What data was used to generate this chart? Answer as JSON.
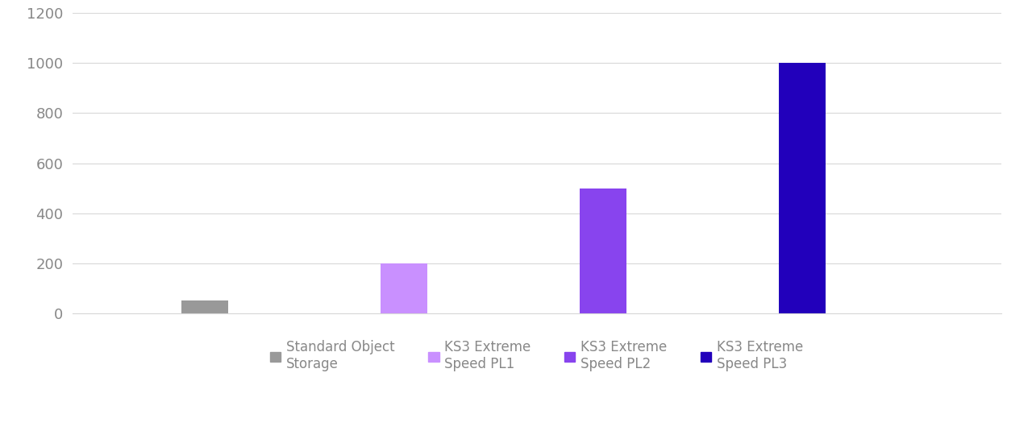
{
  "categories": [
    "Standard Object\nStorage",
    "KS3 Extreme\nSpeed PL1",
    "KS3 Extreme\nSpeed PL2",
    "KS3 Extreme\nSpeed PL3"
  ],
  "values": [
    50,
    200,
    500,
    1000
  ],
  "bar_colors": [
    "#999999",
    "#c990ff",
    "#8844ee",
    "#2200bb"
  ],
  "legend_colors": [
    "#999999",
    "#c990ff",
    "#8844ee",
    "#2200bb"
  ],
  "legend_labels": [
    "Standard Object\nStorage",
    "KS3 Extreme\nSpeed PL1",
    "KS3 Extreme\nSpeed PL2",
    "KS3 Extreme\nSpeed PL3"
  ],
  "ylim": [
    0,
    1200
  ],
  "yticks": [
    0,
    200,
    400,
    600,
    800,
    1000,
    1200
  ],
  "background_color": "#ffffff",
  "grid_color": "#d8d8d8",
  "bar_width": 0.35,
  "bar_positions": [
    1.0,
    2.5,
    4.0,
    5.5
  ]
}
